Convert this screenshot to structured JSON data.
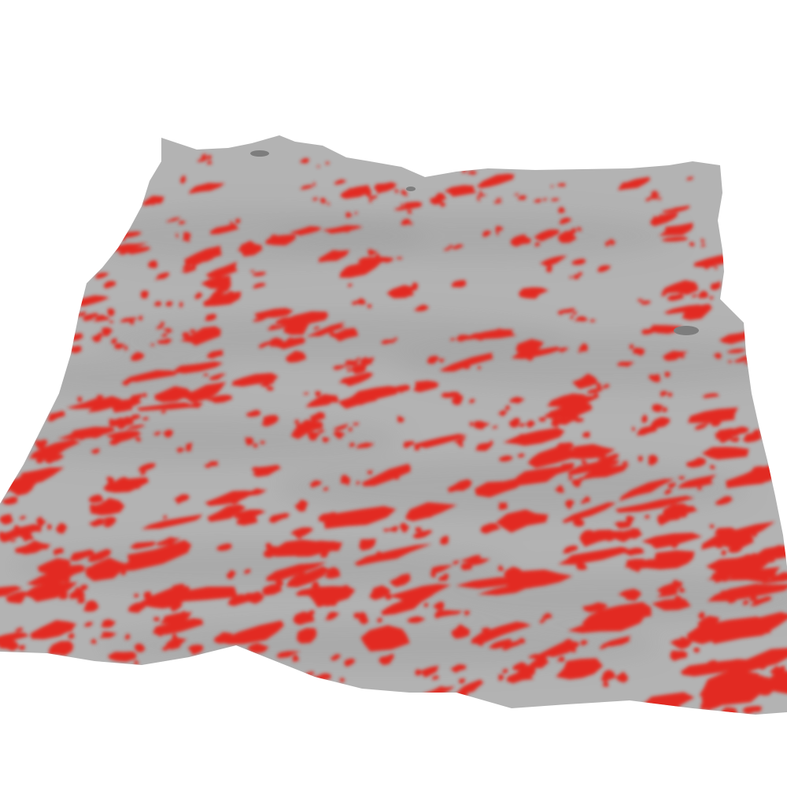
{
  "scene": {
    "type": "3d-terrain-surface-render",
    "caption": "",
    "colors": {
      "background": "#ffffff",
      "surface": "#b3b3b3",
      "surface_shadow": "#9a9a9a",
      "highlight": "#e22a22",
      "peak_shadow": "#7d7d7d"
    },
    "visible_text": []
  }
}
